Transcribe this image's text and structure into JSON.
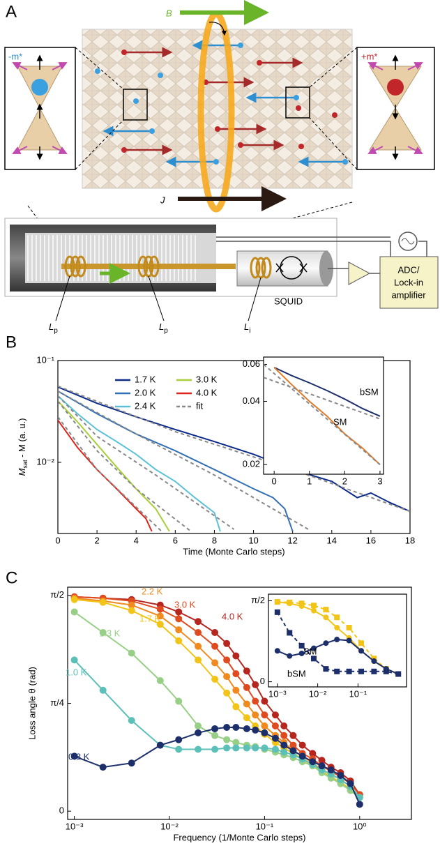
{
  "panel_labels": [
    "A",
    "B",
    "C"
  ],
  "diagram": {
    "field_label": "B",
    "current_label": "J",
    "left_moment": "-m*",
    "right_moment": "+m*",
    "squid": "SQUID",
    "readout": [
      "ADC/",
      "Lock-in",
      "amplifier"
    ],
    "coils": [
      {
        "symbol": "L",
        "sub": "p"
      },
      {
        "symbol": "L",
        "sub": "p"
      },
      {
        "symbol": "L",
        "sub": "i"
      }
    ]
  },
  "chart_data": [
    {
      "type": "line",
      "x_label": "Time (Monte Carlo steps)",
      "y_label": {
        "symbol": "M",
        "sub": "sat",
        "rest": " - M (a. u.)"
      },
      "log_y": true,
      "xlim": [
        0,
        18
      ],
      "ylim": [
        0.002,
        0.1
      ],
      "xticks": [
        0,
        2,
        4,
        6,
        8,
        10,
        12,
        14,
        16,
        18
      ],
      "yticks": [
        {
          "value": 0.01,
          "label": "10⁻²"
        },
        {
          "value": 0.1,
          "label": "10⁻¹"
        }
      ],
      "legend": "top-center",
      "series": [
        {
          "name": "1.7 K",
          "color": "#0b2a8a",
          "x": [
            0,
            2,
            4,
            6,
            8,
            10,
            12,
            14,
            15.3,
            16,
            17,
            18
          ],
          "values": [
            0.055,
            0.038,
            0.028,
            0.021,
            0.016,
            0.012,
            0.0085,
            0.0065,
            0.0045,
            0.005,
            0.004,
            0.0033
          ]
        },
        {
          "name": "2.0 K",
          "color": "#3270b6",
          "x": [
            0,
            2,
            4,
            6,
            8,
            10,
            11,
            11.6,
            12
          ],
          "values": [
            0.05,
            0.03,
            0.019,
            0.013,
            0.0085,
            0.0055,
            0.0045,
            0.0035,
            0.0021
          ]
        },
        {
          "name": "2.4 K",
          "color": "#5cc1d7",
          "x": [
            0,
            1,
            2,
            3,
            4,
            5,
            6,
            7,
            8,
            8.3
          ],
          "values": [
            0.045,
            0.03,
            0.021,
            0.016,
            0.012,
            0.0085,
            0.0065,
            0.0045,
            0.0032,
            0.0021
          ]
        },
        {
          "name": "3.0 K",
          "color": "#a6cf3a",
          "x": [
            0,
            1,
            2,
            3,
            4,
            5,
            5.7
          ],
          "values": [
            0.04,
            0.025,
            0.015,
            0.009,
            0.0055,
            0.0035,
            0.0021
          ]
        },
        {
          "name": "4.0 K",
          "color": "#e0241c",
          "x": [
            0,
            1,
            2,
            3,
            4,
            4.5,
            4.8
          ],
          "values": [
            0.026,
            0.014,
            0.0085,
            0.0055,
            0.0035,
            0.0028,
            0.0021
          ]
        },
        {
          "name": "fit",
          "color": "#888888",
          "dashed": true,
          "x": [
            0,
            6,
            12,
            18,
            null,
            0,
            4,
            8,
            12.8,
            null,
            0,
            2,
            5,
            9,
            null,
            0,
            2,
            4,
            6.8,
            null,
            0,
            2,
            5.3
          ],
          "values": [
            0.056,
            0.02,
            0.0085,
            0.0033,
            null,
            0.05,
            0.019,
            0.0075,
            0.0022,
            null,
            0.045,
            0.018,
            0.0075,
            0.0022,
            null,
            0.04,
            0.013,
            0.0055,
            0.0021,
            null,
            0.028,
            0.0085,
            0.0021
          ]
        }
      ]
    },
    {
      "type": "line",
      "log_y": true,
      "xlim": [
        -0.3,
        3.1
      ],
      "ylim": [
        0.018,
        0.065
      ],
      "xticks": [
        0,
        1,
        2,
        3
      ],
      "yticks": [
        0.02,
        0.04,
        0.06
      ],
      "series": [
        {
          "name": "bSM",
          "color": "#1c2f6b",
          "x": [
            0,
            0.5,
            1,
            1.5,
            2,
            2.5,
            3
          ],
          "values": [
            0.058,
            0.053,
            0.049,
            0.045,
            0.041,
            0.037,
            0.034
          ]
        },
        {
          "name": "SM",
          "color": "#e07b2a",
          "x": [
            0,
            0.5,
            1,
            1.5,
            2,
            2.5,
            3
          ],
          "values": [
            0.058,
            0.048,
            0.04,
            0.034,
            0.028,
            0.024,
            0.02
          ]
        },
        {
          "color": "#888888",
          "dashed": true,
          "x": [
            -0.3,
            3,
            null,
            -0.3,
            3
          ],
          "values": [
            0.052,
            0.033,
            null,
            0.06,
            0.02
          ]
        }
      ]
    },
    {
      "type": "line",
      "x_label": "Frequency (1/Monte Carlo steps)",
      "y_label": "Loss angle θ (rad)",
      "log_x": true,
      "xlim": [
        0.00085,
        3.5
      ],
      "ylim": [
        -0.06,
        1.63
      ],
      "xticks": [
        {
          "value": 0.001,
          "label": "10⁻³"
        },
        {
          "value": 0.01,
          "label": "10⁻²"
        },
        {
          "value": 0.1,
          "label": "10⁻¹"
        },
        {
          "value": 1,
          "label": "10⁰"
        }
      ],
      "yticks": [
        0,
        {
          "value": 0.785,
          "label": "π/4"
        },
        {
          "value": 1.571,
          "label": "π/2"
        }
      ],
      "x": [
        0.001,
        0.002,
        0.004,
        0.008,
        0.0125,
        0.02,
        0.03,
        0.04,
        0.05,
        0.065,
        0.08,
        0.1,
        0.13,
        0.16,
        0.2,
        0.25,
        0.32,
        0.4,
        0.5,
        0.63,
        0.8,
        1.0
      ],
      "series": [
        {
          "name": "4.0 K",
          "color": "#b5261f",
          "marker": "circle",
          "values": [
            1.56,
            1.55,
            1.54,
            1.5,
            1.45,
            1.38,
            1.3,
            1.22,
            1.13,
            1.02,
            0.92,
            0.8,
            0.7,
            0.62,
            0.55,
            0.48,
            0.42,
            0.37,
            0.32,
            0.28,
            0.22,
            0.12
          ]
        },
        {
          "name": "3.0 K",
          "color": "#e04a1f",
          "marker": "circle",
          "values": [
            1.56,
            1.55,
            1.53,
            1.47,
            1.4,
            1.3,
            1.2,
            1.1,
            1.0,
            0.9,
            0.8,
            0.7,
            0.62,
            0.55,
            0.48,
            0.42,
            0.38,
            0.33,
            0.29,
            0.25,
            0.2,
            0.12
          ]
        },
        {
          "name": "2.2 K",
          "color": "#f08a1e",
          "marker": "circle",
          "values": [
            1.55,
            1.53,
            1.5,
            1.42,
            1.32,
            1.2,
            1.08,
            0.98,
            0.88,
            0.78,
            0.7,
            0.62,
            0.55,
            0.5,
            0.44,
            0.4,
            0.35,
            0.3,
            0.27,
            0.23,
            0.18,
            0.1
          ]
        },
        {
          "name": "1.7 K",
          "color": "#f2c417",
          "marker": "circle",
          "values": [
            1.54,
            1.52,
            1.46,
            1.36,
            1.24,
            1.1,
            0.96,
            0.86,
            0.76,
            0.68,
            0.62,
            0.56,
            0.5,
            0.46,
            0.42,
            0.38,
            0.33,
            0.29,
            0.25,
            0.21,
            0.16,
            0.1
          ]
        },
        {
          "name": "1.3 K",
          "color": "#98cf86",
          "marker": "circle",
          "values": [
            1.45,
            1.3,
            1.15,
            0.95,
            0.8,
            0.62,
            0.55,
            0.52,
            0.5,
            0.48,
            0.47,
            0.45,
            0.43,
            0.41,
            0.39,
            0.36,
            0.33,
            0.28,
            0.24,
            0.2,
            0.15,
            0.1
          ]
        },
        {
          "name": "1.0 K",
          "color": "#5cc0b8",
          "marker": "circle",
          "values": [
            1.1,
            0.88,
            0.66,
            0.48,
            0.45,
            0.45,
            0.45,
            0.46,
            0.46,
            0.46,
            0.46,
            0.46,
            0.45,
            0.43,
            0.41,
            0.38,
            0.34,
            0.3,
            0.27,
            0.23,
            0.18,
            0.1
          ]
        },
        {
          "name": "0.8 K",
          "color": "#1c2f6b",
          "marker": "circle",
          "values": [
            0.4,
            0.32,
            0.35,
            0.48,
            0.52,
            0.57,
            0.6,
            0.61,
            0.61,
            0.6,
            0.59,
            0.57,
            0.53,
            0.48,
            0.44,
            0.4,
            0.36,
            0.33,
            0.3,
            0.26,
            0.2,
            0.05
          ]
        }
      ]
    },
    {
      "type": "line",
      "log_x": true,
      "xlim": [
        0.0006,
        1.6
      ],
      "ylim": [
        -0.1,
        1.7
      ],
      "xticks": [
        {
          "value": 0.001,
          "label": "10⁻³"
        },
        {
          "value": 0.01,
          "label": "10⁻²"
        },
        {
          "value": 0.1,
          "label": "10⁻¹"
        }
      ],
      "yticks": [
        0,
        {
          "value": 1.571,
          "label": "π/2"
        }
      ],
      "x": [
        0.001,
        0.002,
        0.004,
        0.008,
        0.016,
        0.03,
        0.06,
        0.12,
        0.25,
        0.5,
        1
      ],
      "series": [
        {
          "color": "#f2c417",
          "marker": "square",
          "dashed": true,
          "values": [
            1.55,
            1.54,
            1.52,
            1.48,
            1.4,
            1.25,
            1.05,
            0.75,
            0.45,
            0.25,
            0.15
          ]
        },
        {
          "color": "#f2c417",
          "marker": "circle",
          "values": [
            1.55,
            1.52,
            1.47,
            1.38,
            1.25,
            1.05,
            0.85,
            0.6,
            0.4,
            0.25,
            0.15
          ]
        },
        {
          "name": "SM",
          "color": "#1c2f6b",
          "marker": "square",
          "dashed": true,
          "values": [
            1.35,
            0.95,
            0.7,
            0.45,
            0.25,
            0.2,
            0.2,
            0.2,
            0.2,
            0.2,
            0.15
          ]
        },
        {
          "name": "bSM",
          "color": "#1c2f6b",
          "marker": "circle",
          "values": [
            0.6,
            0.5,
            0.55,
            0.65,
            0.75,
            0.82,
            0.8,
            0.6,
            0.4,
            0.25,
            0.15
          ]
        }
      ]
    }
  ]
}
